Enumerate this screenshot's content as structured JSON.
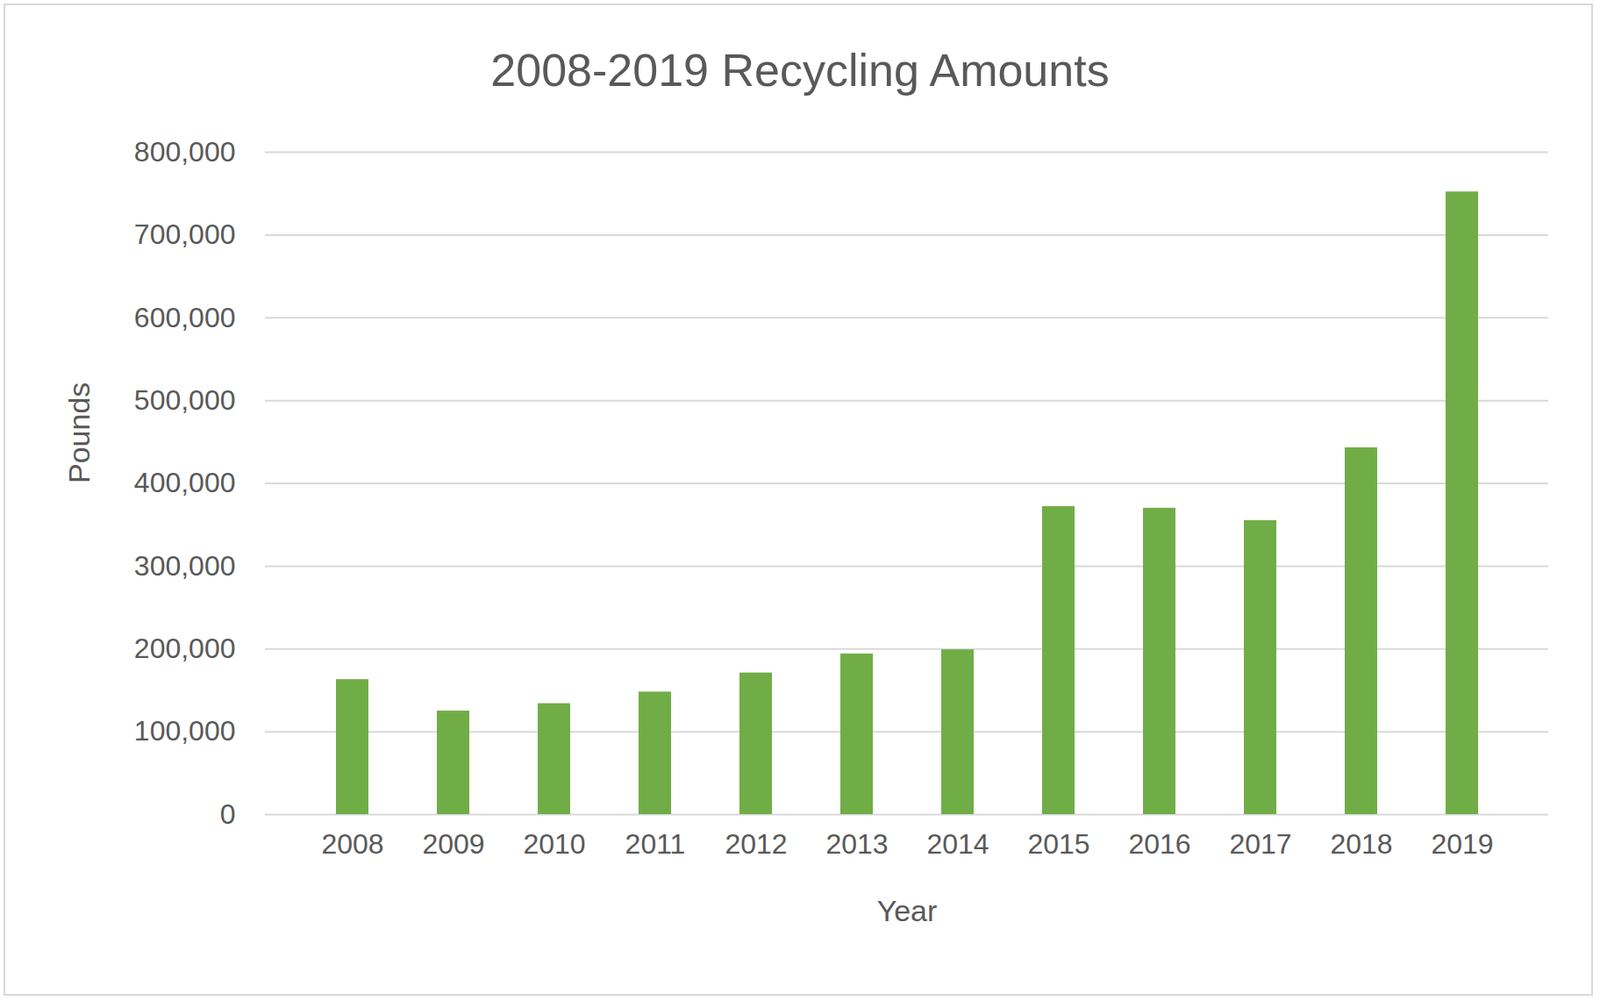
{
  "chart_data": {
    "type": "bar",
    "title": "2008-2019 Recycling Amounts",
    "x_label": "Year",
    "y_label": "Pounds",
    "categories": [
      "2008",
      "2009",
      "2010",
      "2011",
      "2012",
      "2013",
      "2014",
      "2015",
      "2016",
      "2017",
      "2018",
      "2019"
    ],
    "values": [
      163000,
      125000,
      134000,
      148000,
      171000,
      194000,
      199000,
      372000,
      370000,
      355000,
      443000,
      752000
    ],
    "color": "#70ad47",
    "ylim": [
      0,
      800000
    ],
    "yticks": [
      0,
      {
        "value": 100000,
        "label": "100,000"
      },
      {
        "value": 200000,
        "label": "200,000"
      },
      {
        "value": 300000,
        "label": "300,000"
      },
      {
        "value": 400000,
        "label": "400,000"
      },
      {
        "value": 500000,
        "label": "500,000"
      },
      {
        "value": 600000,
        "label": "600,000"
      },
      {
        "value": 700000,
        "label": "700,000"
      },
      {
        "value": 800000,
        "label": "800,000"
      }
    ],
    "grid": true
  }
}
